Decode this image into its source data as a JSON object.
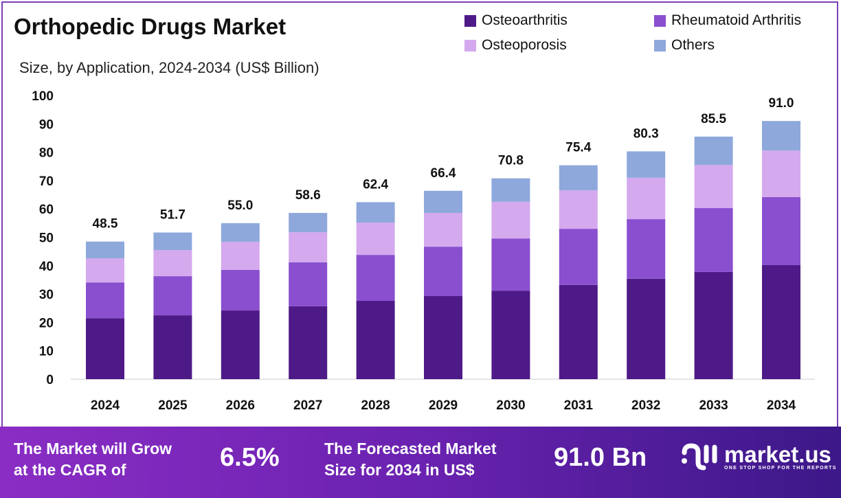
{
  "chart_data": {
    "type": "bar",
    "stacked": true,
    "title": "Orthopedic Drugs Market",
    "subtitle": "Size, by Application, 2024-2034 (US$ Billion)",
    "categories": [
      "2024",
      "2025",
      "2026",
      "2027",
      "2028",
      "2029",
      "2030",
      "2031",
      "2032",
      "2033",
      "2034"
    ],
    "series": [
      {
        "name": "Osteoarthritis",
        "color": "#4e1a87",
        "values": [
          21.5,
          22.5,
          24.2,
          25.7,
          27.6,
          29.3,
          31.2,
          33.2,
          35.4,
          37.8,
          40.2
        ]
      },
      {
        "name": "Rheumatoid Arthritis",
        "color": "#8a4fcf",
        "values": [
          12.6,
          13.8,
          14.3,
          15.5,
          16.2,
          17.4,
          18.4,
          19.8,
          21.0,
          22.5,
          24.0
        ]
      },
      {
        "name": "Osteoporosis",
        "color": "#d4a9ee",
        "values": [
          8.5,
          9.2,
          9.9,
          10.6,
          11.4,
          11.9,
          12.9,
          13.6,
          14.6,
          15.2,
          16.4
        ]
      },
      {
        "name": "Others",
        "color": "#8ea8dc",
        "values": [
          5.9,
          6.2,
          6.6,
          6.8,
          7.2,
          7.8,
          8.3,
          8.8,
          9.3,
          10.0,
          10.4
        ]
      }
    ],
    "totals": [
      "48.5",
      "51.7",
      "55.0",
      "58.6",
      "62.4",
      "66.4",
      "70.8",
      "75.4",
      "80.3",
      "85.5",
      "91.0"
    ],
    "yticks": [
      0,
      10,
      20,
      30,
      40,
      50,
      60,
      70,
      80,
      90,
      100
    ],
    "ylim": [
      0,
      100
    ],
    "grid": false,
    "legend_position": "top-right"
  },
  "banner": {
    "cagr_text": "The Market will Grow at the CAGR of",
    "cagr_line1": "The Market will Grow",
    "cagr_line2": "at the CAGR of",
    "cagr_value": "6.5%",
    "forecast_line1": "The Forecasted Market",
    "forecast_line2": "Size for 2034 in US$",
    "forecast_value": "91.0 Bn",
    "logo_name": "market.us",
    "logo_tagline": "ONE STOP SHOP FOR THE REPORTS"
  }
}
